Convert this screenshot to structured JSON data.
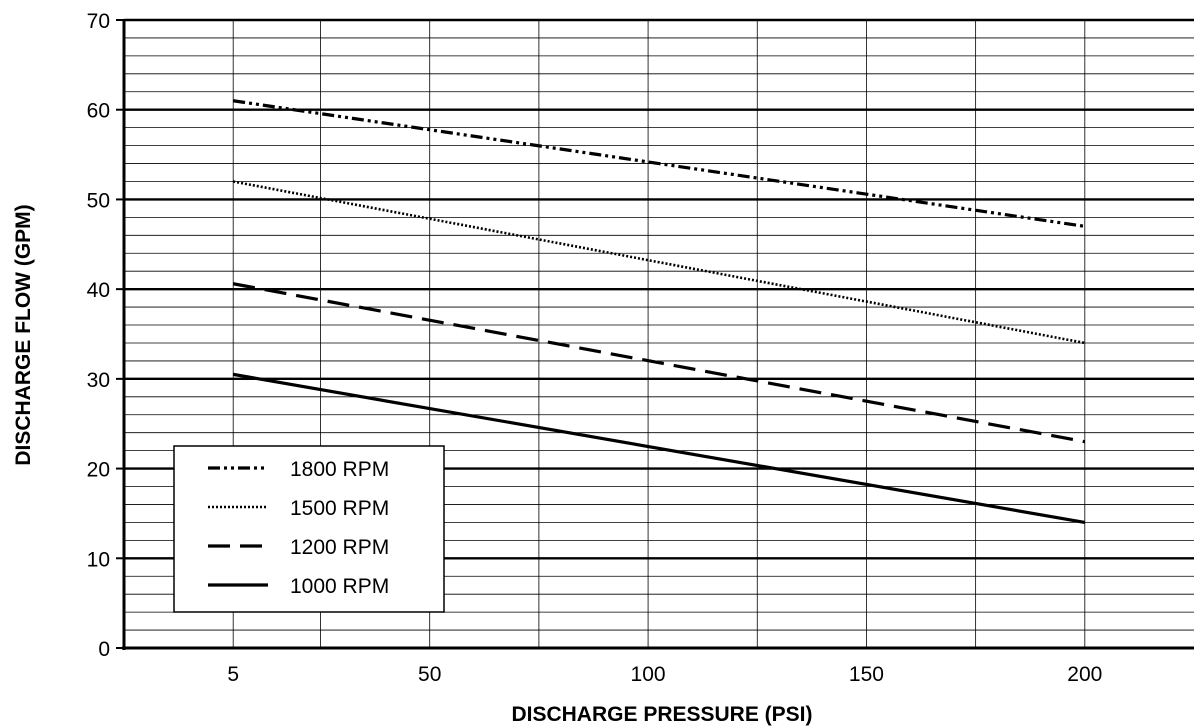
{
  "chart_data": {
    "type": "line",
    "title": "",
    "xlabel": "DISCHARGE PRESSURE (PSI)",
    "ylabel": "DISCHARGE FLOW (GPM)",
    "xlim": [
      -20,
      225
    ],
    "ylim": [
      0,
      70
    ],
    "x_ticks": [
      5,
      50,
      100,
      150,
      200
    ],
    "x_tick_labels": [
      "5",
      "50",
      "100",
      "150",
      "200"
    ],
    "x_minor_gridlines": [
      5,
      25,
      50,
      75,
      100,
      125,
      150,
      175,
      200
    ],
    "y_ticks": [
      0,
      10,
      20,
      30,
      40,
      50,
      60,
      70
    ],
    "y_tick_labels": [
      "0",
      "10",
      "20",
      "30",
      "40",
      "50",
      "60",
      "70"
    ],
    "y_minor_step": 2,
    "grid": true,
    "legend_position": "bottom-left",
    "series": [
      {
        "name": "1800 RPM",
        "style": "dash-dot-dot",
        "color": "#000000",
        "x": [
          5,
          200
        ],
        "values": [
          61,
          47
        ]
      },
      {
        "name": "1500 RPM",
        "style": "dotted",
        "color": "#000000",
        "x": [
          5,
          200
        ],
        "values": [
          52,
          34
        ]
      },
      {
        "name": "1200 RPM",
        "style": "dashed",
        "color": "#000000",
        "x": [
          5,
          200
        ],
        "values": [
          40.6,
          23
        ]
      },
      {
        "name": "1000 RPM",
        "style": "solid",
        "color": "#000000",
        "x": [
          5,
          200
        ],
        "values": [
          30.5,
          14
        ]
      }
    ]
  }
}
